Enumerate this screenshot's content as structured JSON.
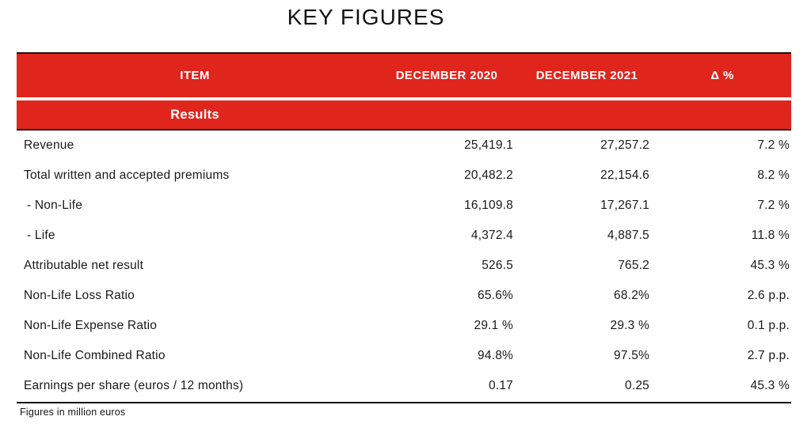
{
  "title": "KEY FIGURES",
  "colors": {
    "accent_red": "#e0251c",
    "dark_rule": "#26100c",
    "text": "#1a1a1a"
  },
  "chart_data": {
    "type": "table",
    "title": "KEY FIGURES",
    "columns": [
      "ITEM",
      "DECEMBER 2020",
      "DECEMBER 2021",
      "Δ %"
    ],
    "section": "Results",
    "rows": [
      {
        "item": "Revenue",
        "dec_2020": "25,419.1",
        "dec_2021": "27,257.2",
        "delta": "7.2 %"
      },
      {
        "item": "Total written and accepted premiums",
        "dec_2020": "20,482.2",
        "dec_2021": "22,154.6",
        "delta": "8.2 %"
      },
      {
        "item": "- Non-Life",
        "dec_2020": "16,109.8",
        "dec_2021": "17,267.1",
        "delta": "7.2 %"
      },
      {
        "item": "- Life",
        "dec_2020": "4,372.4",
        "dec_2021": "4,887.5",
        "delta": "11.8 %"
      },
      {
        "item": "Attributable net result",
        "dec_2020": "526.5",
        "dec_2021": "765.2",
        "delta": "45.3 %"
      },
      {
        "item": "Non-Life Loss Ratio",
        "dec_2020": "65.6%",
        "dec_2021": "68.2%",
        "delta": "2.6 p.p."
      },
      {
        "item": "Non-Life Expense Ratio",
        "dec_2020": "29.1 %",
        "dec_2021": "29.3 %",
        "delta": "0.1 p.p."
      },
      {
        "item": "Non-Life Combined Ratio",
        "dec_2020": "94.8%",
        "dec_2021": "97.5%",
        "delta": "2.7 p.p."
      },
      {
        "item": "Earnings per share (euros / 12 months)",
        "dec_2020": "0.17",
        "dec_2021": "0.25",
        "delta": "45.3 %"
      }
    ],
    "footnote": "Figures in million euros"
  }
}
